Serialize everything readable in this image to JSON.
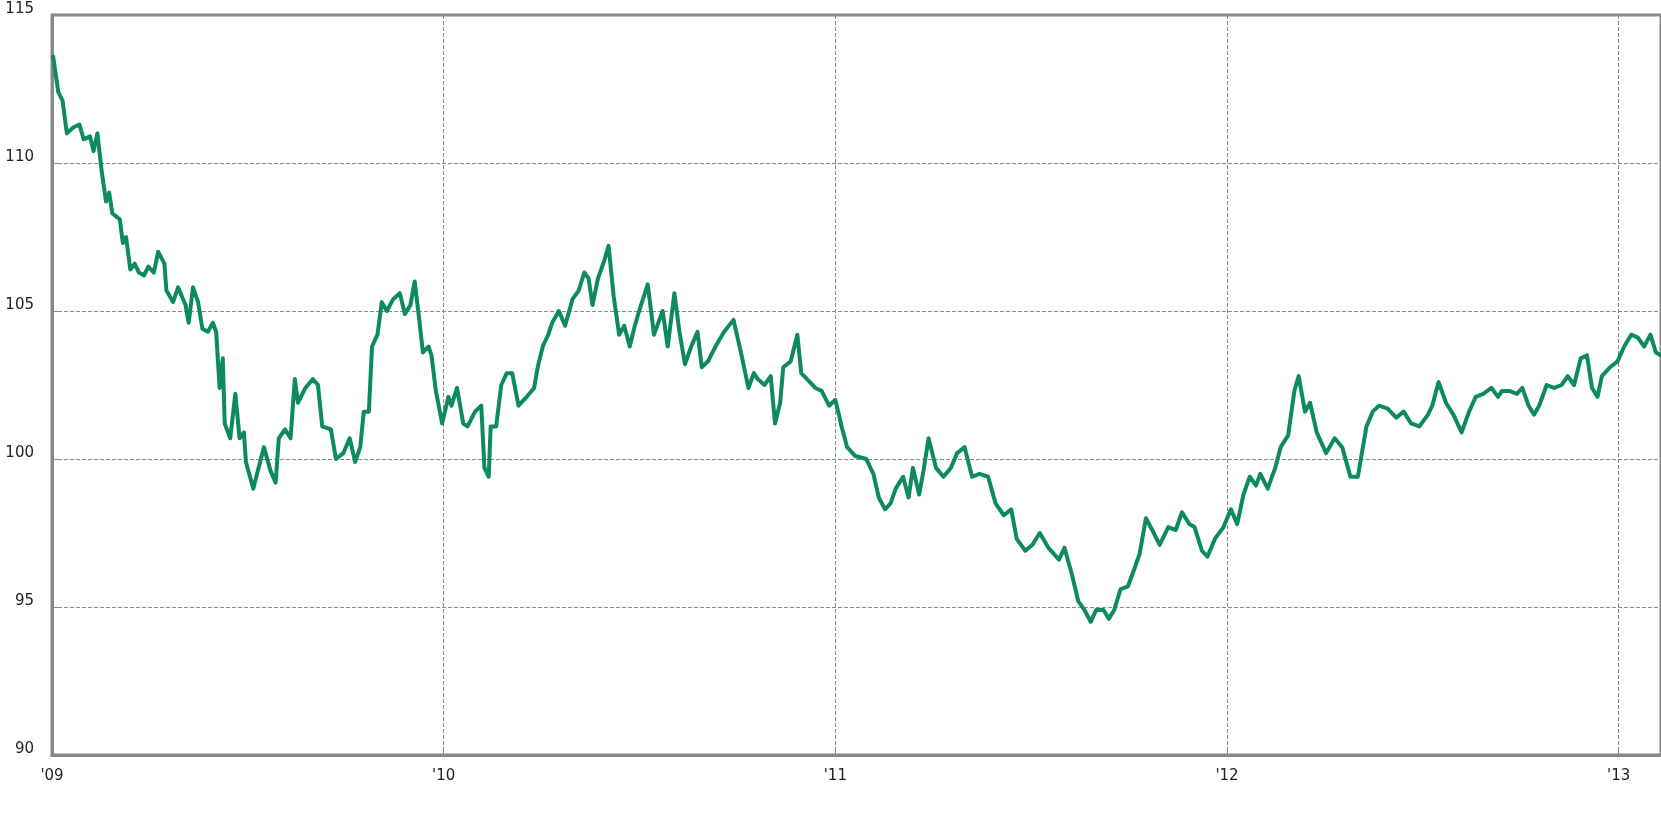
{
  "chart_data": {
    "type": "line",
    "xlim": [
      2009,
      2013.108
    ],
    "ylim": [
      90,
      115
    ],
    "yticks": [
      90,
      95,
      100,
      105,
      110,
      115
    ],
    "xticks": [
      {
        "value": 2009,
        "label": "'09"
      },
      {
        "value": 2010,
        "label": "'10"
      },
      {
        "value": 2011,
        "label": "'11"
      },
      {
        "value": 2012,
        "label": "'12"
      },
      {
        "value": 2013,
        "label": "'13"
      }
    ],
    "grid": true,
    "marker": "none",
    "line_style": "solid",
    "series": [
      {
        "color": "#0e8a5f",
        "x": [
          2009.003,
          2009.016,
          2009.027,
          2009.038,
          2009.054,
          2009.07,
          2009.081,
          2009.097,
          2009.106,
          2009.116,
          2009.127,
          2009.138,
          2009.146,
          2009.154,
          2009.173,
          2009.181,
          2009.189,
          2009.2,
          2009.211,
          2009.222,
          2009.235,
          2009.246,
          2009.26,
          2009.271,
          2009.287,
          2009.292,
          2009.309,
          2009.322,
          2009.341,
          2009.349,
          2009.36,
          2009.373,
          2009.384,
          2009.398,
          2009.411,
          2009.419,
          2009.428,
          2009.436,
          2009.441,
          2009.455,
          2009.468,
          2009.479,
          2009.49,
          2009.495,
          2009.514,
          2009.541,
          2009.558,
          2009.571,
          2009.579,
          2009.595,
          2009.609,
          2009.62,
          2009.628,
          2009.647,
          2009.666,
          2009.679,
          2009.69,
          2009.712,
          2009.725,
          2009.744,
          2009.76,
          2009.774,
          2009.787,
          2009.796,
          2009.809,
          2009.817,
          2009.831,
          2009.842,
          2009.855,
          2009.871,
          2009.888,
          2009.901,
          2009.915,
          2009.926,
          2009.936,
          2009.947,
          2009.961,
          2009.969,
          2009.98,
          2009.996,
          2010.012,
          2010.02,
          2010.034,
          2010.05,
          2010.061,
          2010.08,
          2010.096,
          2010.104,
          2010.115,
          2010.12,
          2010.134,
          2010.147,
          2010.161,
          2010.175,
          2010.191,
          2010.212,
          2010.231,
          2010.24,
          2010.253,
          2010.267,
          2010.277,
          2010.294,
          2010.31,
          2010.329,
          2010.345,
          2010.359,
          2010.37,
          2010.38,
          2010.394,
          2010.41,
          2010.421,
          2010.434,
          2010.448,
          2010.461,
          2010.475,
          2010.488,
          2010.499,
          2010.521,
          2010.537,
          2010.559,
          2010.572,
          2010.589,
          2010.602,
          2010.616,
          2010.632,
          2010.648,
          2010.659,
          2010.675,
          2010.694,
          2010.716,
          2010.74,
          2010.759,
          2010.778,
          2010.792,
          2010.802,
          2010.819,
          2010.835,
          2010.846,
          2010.859,
          2010.867,
          2010.886,
          2010.903,
          2010.913,
          2010.935,
          2010.949,
          2010.965,
          2010.984,
          2011.0,
          2011.016,
          2011.03,
          2011.051,
          2011.079,
          2011.097,
          2011.111,
          2011.127,
          2011.141,
          2011.154,
          2011.173,
          2011.187,
          2011.198,
          2011.214,
          2011.225,
          2011.238,
          2011.257,
          2011.276,
          2011.295,
          2011.311,
          2011.33,
          2011.349,
          2011.368,
          2011.39,
          2011.409,
          2011.43,
          2011.449,
          2011.463,
          2011.485,
          2011.503,
          2011.522,
          2011.544,
          2011.571,
          2011.585,
          2011.604,
          2011.62,
          2011.636,
          2011.652,
          2011.666,
          2011.685,
          2011.698,
          2011.712,
          2011.728,
          2011.747,
          2011.761,
          2011.777,
          2011.793,
          2011.809,
          2011.828,
          2011.85,
          2011.869,
          2011.885,
          2011.904,
          2011.917,
          2011.936,
          2011.95,
          2011.969,
          2011.991,
          2012.01,
          2012.026,
          2012.042,
          2012.058,
          2012.074,
          2012.085,
          2012.104,
          2012.123,
          2012.137,
          2012.156,
          2012.172,
          2012.183,
          2012.199,
          2012.212,
          2012.229,
          2012.253,
          2012.275,
          2012.294,
          2012.315,
          2012.334,
          2012.356,
          2012.372,
          2012.388,
          2012.41,
          2012.432,
          2012.451,
          2012.47,
          2012.491,
          2012.513,
          2012.524,
          2012.54,
          2012.559,
          2012.578,
          2012.599,
          2012.618,
          2012.635,
          2012.654,
          2012.675,
          2012.692,
          2012.702,
          2012.721,
          2012.74,
          2012.754,
          2012.77,
          2012.784,
          2012.797,
          2012.816,
          2012.835,
          2012.854,
          2012.87,
          2012.886,
          2012.903,
          2012.919,
          2012.932,
          2012.946,
          2012.957,
          2012.978,
          2012.997,
          2013.014,
          2013.032,
          2013.049,
          2013.065,
          2013.081,
          2013.095,
          2013.108
        ],
        "values": [
          113.6,
          112.4,
          112.1,
          111.0,
          111.2,
          111.3,
          110.8,
          110.9,
          110.4,
          111.0,
          109.7,
          108.7,
          109.0,
          108.3,
          108.1,
          107.3,
          107.5,
          106.4,
          106.6,
          106.3,
          106.2,
          106.5,
          106.3,
          107.0,
          106.6,
          105.7,
          105.3,
          105.8,
          105.2,
          104.6,
          105.8,
          105.3,
          104.4,
          104.3,
          104.6,
          104.3,
          102.4,
          103.4,
          101.2,
          100.7,
          102.2,
          100.7,
          100.9,
          99.9,
          99.0,
          100.4,
          99.6,
          99.2,
          100.7,
          101.0,
          100.7,
          102.7,
          101.9,
          102.4,
          102.7,
          102.5,
          101.1,
          101.0,
          100.0,
          100.2,
          100.7,
          99.9,
          100.4,
          101.6,
          101.6,
          103.8,
          104.2,
          105.3,
          105.0,
          105.4,
          105.6,
          104.9,
          105.2,
          106.0,
          104.9,
          103.6,
          103.8,
          103.5,
          102.3,
          101.2,
          102.1,
          101.8,
          102.4,
          101.2,
          101.1,
          101.6,
          101.8,
          99.7,
          99.4,
          101.1,
          101.1,
          102.5,
          102.9,
          102.9,
          101.8,
          102.1,
          102.4,
          103.1,
          103.8,
          104.2,
          104.6,
          105.0,
          104.5,
          105.4,
          105.7,
          106.3,
          106.1,
          105.2,
          106.1,
          106.7,
          107.2,
          105.5,
          104.2,
          104.5,
          103.8,
          104.5,
          105.0,
          105.9,
          104.2,
          105.0,
          103.8,
          105.6,
          104.3,
          103.2,
          103.8,
          104.3,
          103.1,
          103.3,
          103.8,
          104.3,
          104.7,
          103.6,
          102.4,
          102.9,
          102.7,
          102.5,
          102.8,
          101.2,
          101.9,
          103.1,
          103.3,
          104.2,
          102.9,
          102.6,
          102.4,
          102.3,
          101.8,
          102.0,
          101.1,
          100.4,
          100.1,
          100.0,
          99.5,
          98.7,
          98.3,
          98.5,
          99.0,
          99.4,
          98.7,
          99.7,
          98.8,
          99.6,
          100.7,
          99.7,
          99.4,
          99.7,
          100.2,
          100.4,
          99.4,
          99.5,
          99.4,
          98.5,
          98.1,
          98.3,
          97.3,
          96.9,
          97.1,
          97.5,
          97.0,
          96.6,
          97.0,
          96.1,
          95.2,
          94.9,
          94.5,
          94.9,
          94.9,
          94.6,
          94.9,
          95.6,
          95.7,
          96.2,
          96.8,
          98.0,
          97.6,
          97.1,
          97.7,
          97.6,
          98.2,
          97.8,
          97.7,
          96.9,
          96.7,
          97.3,
          97.7,
          98.3,
          97.8,
          98.8,
          99.4,
          99.1,
          99.5,
          99.0,
          99.7,
          100.4,
          100.8,
          102.3,
          102.8,
          101.6,
          101.9,
          100.9,
          100.2,
          100.7,
          100.4,
          99.4,
          99.4,
          101.1,
          101.6,
          101.8,
          101.7,
          101.4,
          101.6,
          101.2,
          101.1,
          101.5,
          101.8,
          102.6,
          101.9,
          101.5,
          100.9,
          101.6,
          102.1,
          102.2,
          102.4,
          102.1,
          102.3,
          102.3,
          102.2,
          102.4,
          101.8,
          101.5,
          101.8,
          102.5,
          102.4,
          102.5,
          102.8,
          102.5,
          103.4,
          103.5,
          102.4,
          102.1,
          102.8,
          103.1,
          103.3,
          103.8,
          104.2,
          104.1,
          103.8,
          104.2,
          103.6,
          103.5
        ]
      }
    ]
  }
}
